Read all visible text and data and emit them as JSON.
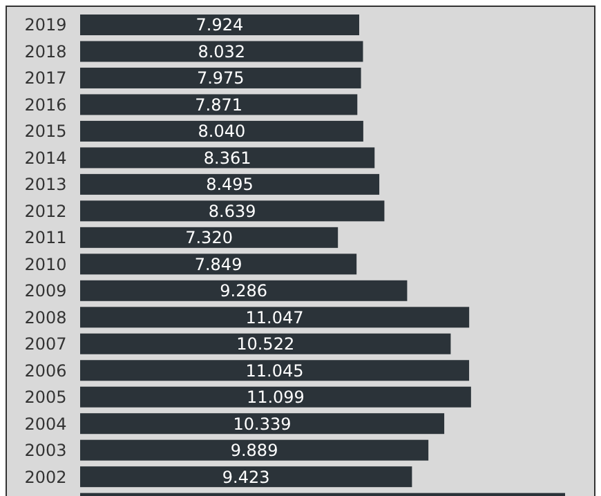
{
  "chart_data": {
    "type": "bar",
    "orientation": "horizontal",
    "categories": [
      "2019",
      "2018",
      "2017",
      "2016",
      "2015",
      "2014",
      "2013",
      "2012",
      "2011",
      "2010",
      "2009",
      "2008",
      "2007",
      "2006",
      "2005",
      "2004",
      "2003",
      "2002",
      null
    ],
    "values": [
      7.924,
      8.032,
      7.975,
      7.871,
      8.04,
      8.361,
      8.495,
      8.639,
      7.32,
      7.849,
      9.286,
      11.047,
      10.522,
      11.045,
      11.099,
      10.339,
      9.889,
      9.423,
      13.77
    ],
    "value_labels": [
      "7.924",
      "8.032",
      "7.975",
      "7.871",
      "8.040",
      "8.361",
      "8.495",
      "8.639",
      "7.320",
      "7.849",
      "9.286",
      "11.047",
      "10.522",
      "11.045",
      "11.099",
      "10.339",
      "9.889",
      "9.423",
      null
    ],
    "color": "#2b3339"
  }
}
